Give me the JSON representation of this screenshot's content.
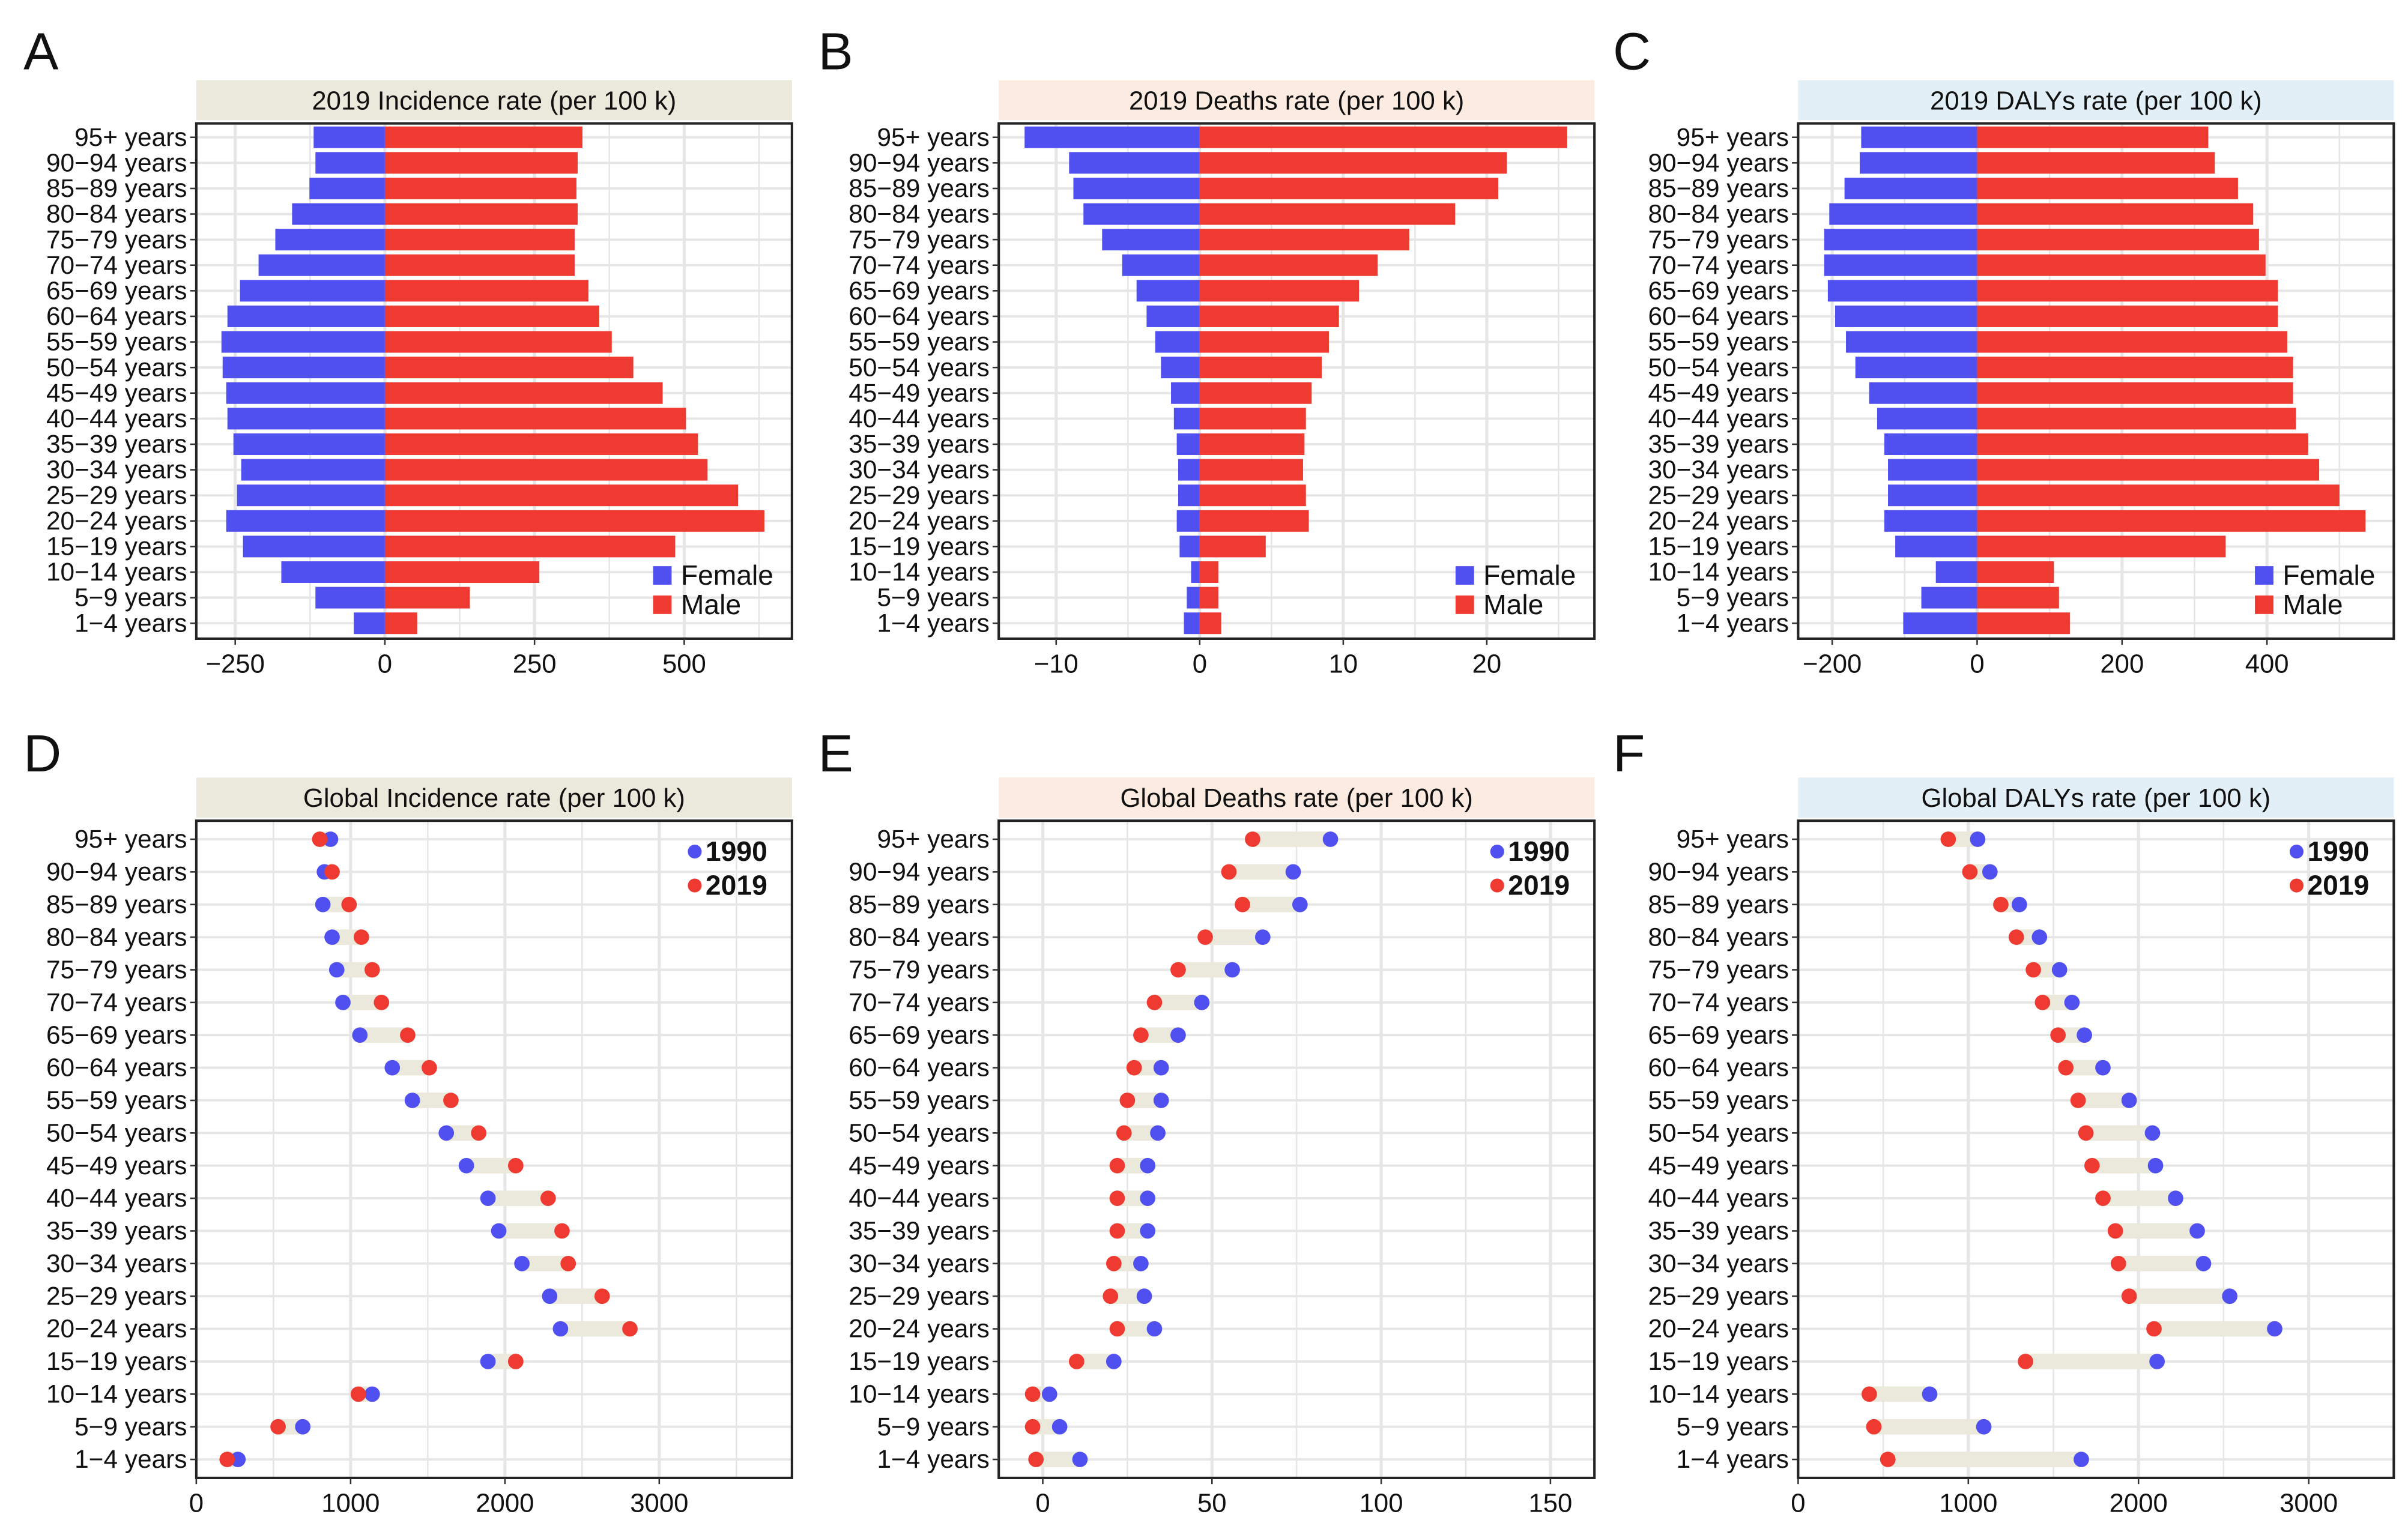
{
  "colors": {
    "female": "#5050f0",
    "male": "#ee3a30",
    "y1990": "#5050f0",
    "y2019": "#ee3a30",
    "segment": "#ebe8dc",
    "grid": "#e6e6e6"
  },
  "categories": [
    "95+ years",
    "90−94 years",
    "85−89 years",
    "80−84 years",
    "75−79 years",
    "70−74 years",
    "65−69 years",
    "60−64 years",
    "55−59 years",
    "50−54 years",
    "45−49 years",
    "40−44 years",
    "35−39 years",
    "30−34 years",
    "25−29 years",
    "20−24 years",
    "15−19 years",
    "10−14 years",
    "5−9 years",
    "1−4 years"
  ],
  "chart_data": [
    {
      "panel": "A",
      "type": "bar",
      "title": "2019 Incidence rate (per 100 k)",
      "strip_color": "#ebe8dc",
      "xlim": [
        -315,
        680
      ],
      "xticks": [
        -250,
        0,
        250,
        500
      ],
      "xtick_labels": [
        "−250",
        "0",
        "250",
        "500"
      ],
      "legend": [
        "Female",
        "Male"
      ],
      "series": [
        {
          "name": "Female",
          "values": [
            -119,
            -116,
            -126,
            -155,
            -183,
            -211,
            -242,
            -263,
            -273,
            -271,
            -265,
            -263,
            -253,
            -240,
            -247,
            -265,
            -237,
            -173,
            -116,
            -52
          ]
        },
        {
          "name": "Male",
          "values": [
            330,
            322,
            320,
            322,
            317,
            317,
            340,
            358,
            379,
            415,
            464,
            503,
            523,
            539,
            590,
            634,
            485,
            258,
            142,
            54
          ]
        }
      ]
    },
    {
      "panel": "B",
      "type": "bar",
      "title": "2019 Deaths rate (per 100 k)",
      "strip_color": "#fcebe0",
      "xlim": [
        -14,
        27.5
      ],
      "xticks": [
        -10,
        0,
        10,
        20
      ],
      "xtick_labels": [
        "−10",
        "0",
        "10",
        "20"
      ],
      "legend": [
        "Female",
        "Male"
      ],
      "series": [
        {
          "name": "Female",
          "values": [
            -12.2,
            -9.1,
            -8.8,
            -8.1,
            -6.8,
            -5.4,
            -4.4,
            -3.7,
            -3.1,
            -2.7,
            -2.0,
            -1.8,
            -1.6,
            -1.5,
            -1.5,
            -1.6,
            -1.4,
            -0.6,
            -0.9,
            -1.1
          ]
        },
        {
          "name": "Male",
          "values": [
            25.6,
            21.4,
            20.8,
            17.8,
            14.6,
            12.4,
            11.1,
            9.7,
            9.0,
            8.5,
            7.8,
            7.4,
            7.3,
            7.2,
            7.4,
            7.6,
            4.6,
            1.3,
            1.3,
            1.5
          ]
        }
      ]
    },
    {
      "panel": "C",
      "type": "bar",
      "title": "2019 DALYs rate (per 100 k)",
      "strip_color": "#e2eff7",
      "xlim": [
        -247,
        575
      ],
      "xticks": [
        -200,
        0,
        200,
        400
      ],
      "xtick_labels": [
        "−200",
        "0",
        "200",
        "400"
      ],
      "legend": [
        "Female",
        "Male"
      ],
      "series": [
        {
          "name": "Female",
          "values": [
            -160,
            -162,
            -183,
            -204,
            -211,
            -211,
            -206,
            -196,
            -181,
            -168,
            -149,
            -138,
            -128,
            -123,
            -123,
            -128,
            -113,
            -57,
            -77,
            -102
          ]
        },
        {
          "name": "Male",
          "values": [
            319,
            328,
            360,
            381,
            389,
            398,
            415,
            415,
            428,
            436,
            436,
            440,
            457,
            472,
            500,
            536,
            343,
            106,
            113,
            128
          ]
        }
      ]
    },
    {
      "panel": "D",
      "type": "dumbbell",
      "title": "Global Incidence rate (per 100 k)",
      "strip_color": "#ebe8dc",
      "xlim": [
        0,
        3860
      ],
      "xticks": [
        0,
        1000,
        2000,
        3000
      ],
      "xtick_labels": [
        "0",
        "1000",
        "2000",
        "3000"
      ],
      "legend": [
        "1990",
        "2019"
      ],
      "series": [
        {
          "name": "1990",
          "values": [
            870,
            830,
            820,
            880,
            910,
            950,
            1060,
            1270,
            1400,
            1620,
            1750,
            1890,
            1960,
            2110,
            2290,
            2360,
            1890,
            1140,
            690,
            270
          ]
        },
        {
          "name": "2019",
          "values": [
            800,
            880,
            990,
            1070,
            1140,
            1200,
            1370,
            1510,
            1650,
            1830,
            2070,
            2280,
            2370,
            2410,
            2630,
            2810,
            2070,
            1050,
            530,
            200
          ]
        }
      ]
    },
    {
      "panel": "E",
      "type": "dumbbell",
      "title": "Global Deaths rate (per 100 k)",
      "strip_color": "#fcebe0",
      "xlim": [
        -13,
        163
      ],
      "xticks": [
        0,
        50,
        100,
        150
      ],
      "xtick_labels": [
        "0",
        "50",
        "100",
        "150"
      ],
      "legend": [
        "1990",
        "2019"
      ],
      "series": [
        {
          "name": "1990",
          "values": [
            85,
            74,
            76,
            65,
            56,
            47,
            40,
            35,
            35,
            34,
            31,
            31,
            31,
            29,
            30,
            33,
            21,
            2,
            5,
            11
          ]
        },
        {
          "name": "2019",
          "values": [
            62,
            55,
            59,
            48,
            40,
            33,
            29,
            27,
            25,
            24,
            22,
            22,
            22,
            21,
            20,
            22,
            10,
            -3,
            -3,
            -2
          ]
        }
      ]
    },
    {
      "panel": "F",
      "type": "dumbbell",
      "title": "Global DALYs rate (per 100 k)",
      "strip_color": "#e2eff7",
      "xlim": [
        0,
        3500
      ],
      "xticks": [
        0,
        1000,
        2000,
        3000
      ],
      "xtick_labels": [
        "0",
        "1000",
        "2000",
        "3000"
      ],
      "legend": [
        "1990",
        "2019"
      ],
      "series": [
        {
          "name": "1990",
          "values": [
            1055,
            1127,
            1300,
            1418,
            1536,
            1609,
            1682,
            1791,
            1945,
            2082,
            2100,
            2218,
            2345,
            2382,
            2536,
            2800,
            2109,
            773,
            1091,
            1664
          ]
        },
        {
          "name": "2019",
          "values": [
            882,
            1009,
            1191,
            1282,
            1382,
            1436,
            1527,
            1573,
            1645,
            1691,
            1727,
            1791,
            1864,
            1882,
            1945,
            2091,
            1336,
            418,
            445,
            527
          ]
        }
      ]
    }
  ]
}
